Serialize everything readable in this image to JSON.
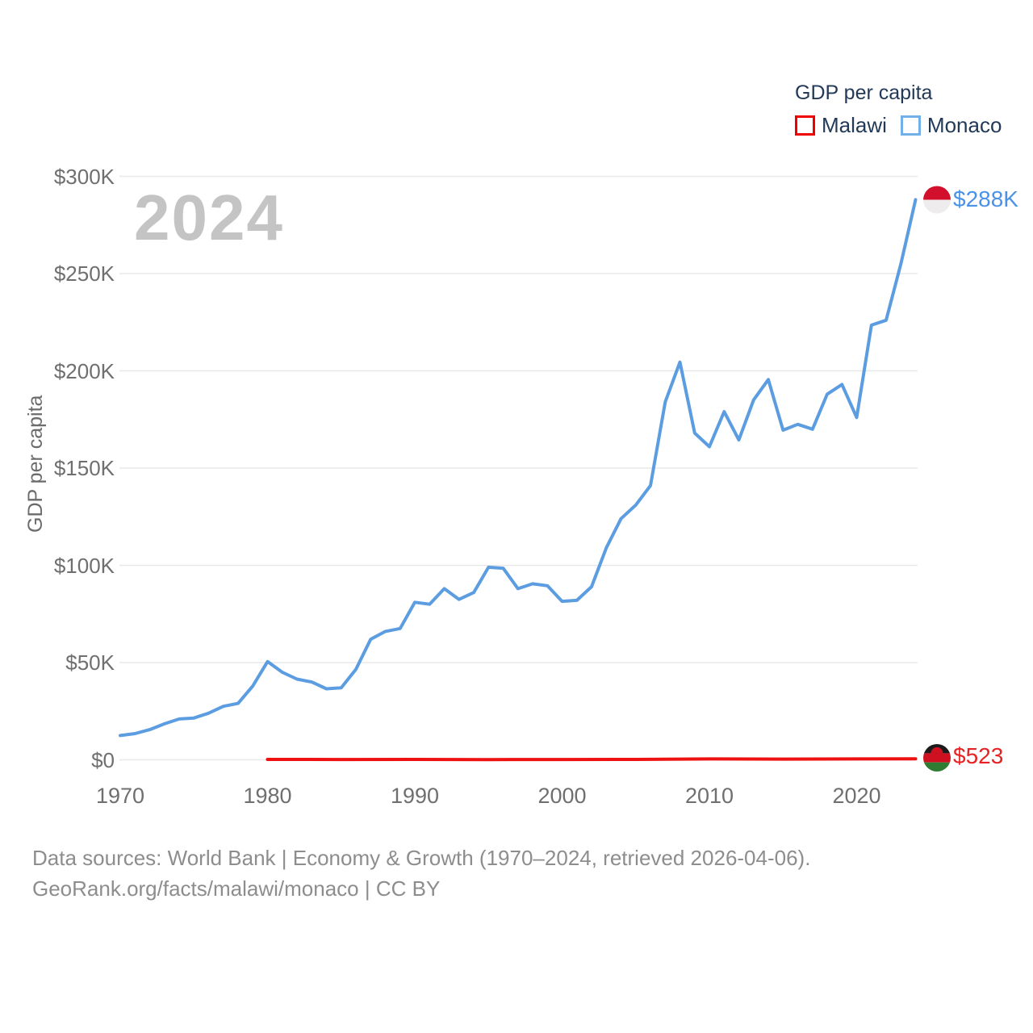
{
  "watermark_year": "2024",
  "legend": {
    "title": "GDP per capita",
    "items": [
      {
        "label": "Malawi",
        "color": "#ee0000"
      },
      {
        "label": "Monaco",
        "color": "#74b0e8"
      }
    ]
  },
  "y_axis": {
    "title": "GDP per capita",
    "tick_labels": [
      "$0",
      "$50K",
      "$100K",
      "$150K",
      "$200K",
      "$250K",
      "$300K"
    ],
    "tick_values_usd_k": [
      0,
      50,
      100,
      150,
      200,
      250,
      300
    ]
  },
  "x_axis": {
    "tick_labels": [
      "1970",
      "1980",
      "1990",
      "2000",
      "2010",
      "2020"
    ],
    "tick_values": [
      1970,
      1980,
      1990,
      2000,
      2010,
      2020
    ]
  },
  "end_labels": {
    "monaco": {
      "value": "$288K",
      "flag": "monaco-flag"
    },
    "malawi": {
      "value": "$523",
      "flag": "malawi-flag"
    }
  },
  "footer": {
    "line1": "Data sources: World Bank | Economy & Growth (1970–2024, retrieved 2026-04-06).",
    "line2": "GeoRank.org/facts/malawi/monaco | CC BY"
  },
  "chart_data": {
    "type": "line",
    "title": "GDP per capita",
    "ylabel": "GDP per capita",
    "ylim_usd_k": [
      0,
      300
    ],
    "xlim": [
      1970,
      2024
    ],
    "grid": "horizontal",
    "legend_position": "top-right",
    "series": [
      {
        "name": "Monaco",
        "color": "#5b9de0",
        "end_value_label": "$288K",
        "x": [
          1970,
          1971,
          1972,
          1973,
          1974,
          1975,
          1976,
          1977,
          1978,
          1979,
          1980,
          1981,
          1982,
          1983,
          1984,
          1985,
          1986,
          1987,
          1988,
          1989,
          1990,
          1991,
          1992,
          1993,
          1994,
          1995,
          1996,
          1997,
          1998,
          1999,
          2000,
          2001,
          2002,
          2003,
          2004,
          2005,
          2006,
          2007,
          2008,
          2009,
          2010,
          2011,
          2012,
          2013,
          2014,
          2015,
          2016,
          2017,
          2018,
          2019,
          2020,
          2021,
          2022,
          2023,
          2024
        ],
        "values_usd_k": [
          12.5,
          13.5,
          15.5,
          18.5,
          21,
          21.5,
          24,
          27.5,
          29,
          38,
          50.5,
          45,
          41.5,
          40,
          36.5,
          37,
          46.5,
          62,
          66,
          67.5,
          81,
          80,
          88,
          82.5,
          86,
          99,
          98.5,
          88,
          90.5,
          89.5,
          81.5,
          82,
          89,
          109,
          124,
          131,
          141,
          184,
          204.5,
          168,
          161,
          179,
          164.5,
          185,
          195.5,
          169.5,
          172.5,
          170,
          188,
          193,
          176,
          223.5,
          226,
          255,
          288
        ]
      },
      {
        "name": "Malawi",
        "color": "#ee1111",
        "end_value_label": "$523",
        "x": [
          1980,
          1985,
          1990,
          1995,
          2000,
          2005,
          2010,
          2015,
          2020,
          2024
        ],
        "values_usd_k": [
          0.2,
          0.16,
          0.19,
          0.14,
          0.15,
          0.22,
          0.47,
          0.36,
          0.46,
          0.523
        ]
      }
    ]
  }
}
